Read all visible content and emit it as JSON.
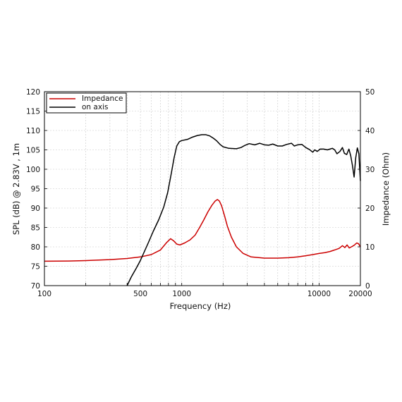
{
  "chart_data": {
    "type": "line",
    "xlabel": "Frequency (Hz)",
    "ylabel": "SPL (dB) @ 2.83V , 1m",
    "y2label": "Impedance (Ohm)",
    "xscale": "log",
    "xlim": [
      100,
      20000
    ],
    "ylim": [
      70,
      120
    ],
    "y2lim": [
      0,
      50
    ],
    "grid": true,
    "legend_position": "top-left",
    "x_ticks": [
      {
        "value": 100,
        "label": "100"
      },
      {
        "value": 500,
        "label": "500"
      },
      {
        "value": 1000,
        "label": "1000"
      },
      {
        "value": 10000,
        "label": "10000"
      },
      {
        "value": 20000,
        "label": "20000"
      }
    ],
    "y_ticks": [
      {
        "value": 70,
        "label": "70"
      },
      {
        "value": 75,
        "label": "75"
      },
      {
        "value": 80,
        "label": "80"
      },
      {
        "value": 85,
        "label": "85"
      },
      {
        "value": 90,
        "label": "90"
      },
      {
        "value": 95,
        "label": "95"
      },
      {
        "value": 100,
        "label": "100"
      },
      {
        "value": 105,
        "label": "105"
      },
      {
        "value": 110,
        "label": "110"
      },
      {
        "value": 115,
        "label": "115"
      },
      {
        "value": 120,
        "label": "120"
      }
    ],
    "y2_ticks": [
      {
        "value": 0,
        "label": "0"
      },
      {
        "value": 10,
        "label": "10"
      },
      {
        "value": 20,
        "label": "20"
      },
      {
        "value": 30,
        "label": "30"
      },
      {
        "value": 40,
        "label": "40"
      },
      {
        "value": 50,
        "label": "50"
      }
    ],
    "series": [
      {
        "name": "Impedance",
        "color": "#cc0000",
        "axis": "right",
        "points": [
          [
            100,
            6.3
          ],
          [
            150,
            6.35
          ],
          [
            200,
            6.45
          ],
          [
            300,
            6.7
          ],
          [
            400,
            7.0
          ],
          [
            500,
            7.4
          ],
          [
            600,
            8.0
          ],
          [
            700,
            9.2
          ],
          [
            780,
            11.2
          ],
          [
            830,
            12.1
          ],
          [
            870,
            11.6
          ],
          [
            920,
            10.7
          ],
          [
            970,
            10.5
          ],
          [
            1050,
            11.0
          ],
          [
            1150,
            11.8
          ],
          [
            1250,
            13.0
          ],
          [
            1350,
            15.0
          ],
          [
            1450,
            17.0
          ],
          [
            1550,
            19.0
          ],
          [
            1650,
            20.6
          ],
          [
            1750,
            21.8
          ],
          [
            1820,
            22.2
          ],
          [
            1880,
            21.8
          ],
          [
            1950,
            20.6
          ],
          [
            2050,
            18.0
          ],
          [
            2150,
            15.3
          ],
          [
            2300,
            12.5
          ],
          [
            2500,
            10.0
          ],
          [
            2800,
            8.3
          ],
          [
            3200,
            7.4
          ],
          [
            4000,
            7.1
          ],
          [
            5000,
            7.1
          ],
          [
            6000,
            7.2
          ],
          [
            7000,
            7.4
          ],
          [
            8000,
            7.7
          ],
          [
            9000,
            8.0
          ],
          [
            10000,
            8.3
          ],
          [
            11000,
            8.5
          ],
          [
            12000,
            8.8
          ],
          [
            13000,
            9.2
          ],
          [
            14000,
            9.6
          ],
          [
            14800,
            10.3
          ],
          [
            15400,
            9.8
          ],
          [
            16000,
            10.5
          ],
          [
            16600,
            9.7
          ],
          [
            17200,
            10.0
          ],
          [
            18000,
            10.4
          ],
          [
            18800,
            11.0
          ],
          [
            19400,
            10.8
          ],
          [
            20000,
            10.0
          ]
        ]
      },
      {
        "name": "on axis",
        "color": "#000000",
        "axis": "left",
        "points": [
          [
            400,
            70.0
          ],
          [
            430,
            72.3
          ],
          [
            470,
            74.7
          ],
          [
            500,
            76.5
          ],
          [
            530,
            78.5
          ],
          [
            570,
            81.0
          ],
          [
            620,
            84.0
          ],
          [
            680,
            87.0
          ],
          [
            740,
            90.3
          ],
          [
            790,
            94.0
          ],
          [
            840,
            99.0
          ],
          [
            880,
            103.0
          ],
          [
            920,
            106.0
          ],
          [
            960,
            107.1
          ],
          [
            1000,
            107.4
          ],
          [
            1100,
            107.7
          ],
          [
            1200,
            108.3
          ],
          [
            1300,
            108.7
          ],
          [
            1400,
            108.9
          ],
          [
            1500,
            108.9
          ],
          [
            1600,
            108.6
          ],
          [
            1700,
            108.0
          ],
          [
            1800,
            107.3
          ],
          [
            1900,
            106.4
          ],
          [
            2000,
            105.8
          ],
          [
            2200,
            105.4
          ],
          [
            2500,
            105.3
          ],
          [
            2700,
            105.6
          ],
          [
            2900,
            106.2
          ],
          [
            3100,
            106.6
          ],
          [
            3400,
            106.3
          ],
          [
            3700,
            106.7
          ],
          [
            4000,
            106.3
          ],
          [
            4300,
            106.2
          ],
          [
            4600,
            106.5
          ],
          [
            5000,
            106.0
          ],
          [
            5400,
            106.0
          ],
          [
            5800,
            106.4
          ],
          [
            6300,
            106.7
          ],
          [
            6600,
            106.0
          ],
          [
            7000,
            106.3
          ],
          [
            7500,
            106.4
          ],
          [
            8000,
            105.6
          ],
          [
            8500,
            105.1
          ],
          [
            9000,
            104.4
          ],
          [
            9300,
            105.0
          ],
          [
            9700,
            104.6
          ],
          [
            10200,
            105.2
          ],
          [
            10800,
            105.2
          ],
          [
            11500,
            105.0
          ],
          [
            12000,
            105.2
          ],
          [
            12500,
            105.4
          ],
          [
            13000,
            105.0
          ],
          [
            13500,
            104.0
          ],
          [
            14200,
            104.6
          ],
          [
            14800,
            105.6
          ],
          [
            15300,
            104.1
          ],
          [
            15900,
            103.8
          ],
          [
            16500,
            105.2
          ],
          [
            17000,
            103.5
          ],
          [
            17500,
            101.0
          ],
          [
            18000,
            98.0
          ],
          [
            18500,
            103.0
          ],
          [
            19000,
            105.5
          ],
          [
            19500,
            104.0
          ],
          [
            20000,
            97.0
          ]
        ]
      }
    ]
  }
}
